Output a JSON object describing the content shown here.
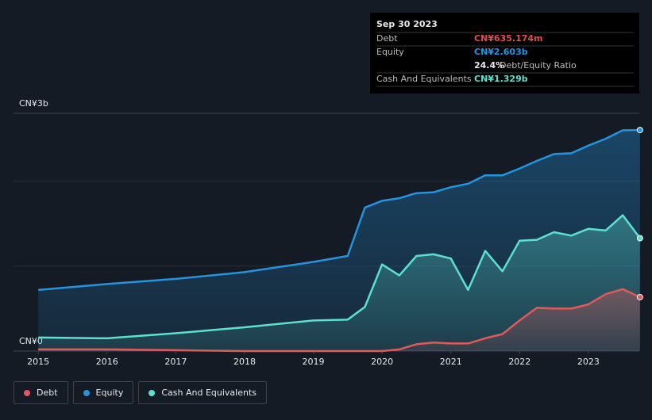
{
  "chart_data": {
    "type": "area",
    "x": [
      2015,
      2016,
      2017,
      2018,
      2019,
      2019.5,
      2019.75,
      2020,
      2020.25,
      2020.5,
      2020.75,
      2021,
      2021.25,
      2021.5,
      2021.75,
      2022,
      2022.25,
      2022.5,
      2022.75,
      2023,
      2023.25,
      2023.5,
      2023.75
    ],
    "xlim": [
      2014.64,
      2023.74
    ],
    "xticks": [
      2015,
      2016,
      2017,
      2018,
      2019,
      2020,
      2021,
      2022,
      2023
    ],
    "ylim": [
      0,
      2.8
    ],
    "yticks": [
      {
        "value": 0,
        "label": "CN¥0"
      },
      {
        "value": 2.8,
        "label": "CN¥3b"
      }
    ],
    "grid_values": [
      1,
      2
    ],
    "series": [
      {
        "name": "Equity",
        "color": "#2394df",
        "values": [
          0.72,
          0.79,
          0.85,
          0.93,
          1.05,
          1.12,
          1.69,
          1.77,
          1.8,
          1.86,
          1.87,
          1.93,
          1.97,
          2.07,
          2.07,
          2.15,
          2.24,
          2.32,
          2.33,
          2.42,
          2.5,
          2.6,
          2.603
        ]
      },
      {
        "name": "Cash And Equivalents",
        "color": "#5ce0d0",
        "values": [
          0.16,
          0.15,
          0.21,
          0.28,
          0.36,
          0.37,
          0.52,
          1.02,
          0.89,
          1.12,
          1.14,
          1.09,
          0.72,
          1.18,
          0.94,
          1.3,
          1.31,
          1.4,
          1.36,
          1.44,
          1.42,
          1.6,
          1.329
        ]
      },
      {
        "name": "Debt",
        "color": "#e05a5a",
        "values": [
          0.02,
          0.02,
          0.01,
          0,
          0,
          0,
          0,
          0,
          0.02,
          0.08,
          0.1,
          0.09,
          0.09,
          0.15,
          0.2,
          0.36,
          0.51,
          0.5,
          0.5,
          0.55,
          0.67,
          0.73,
          0.635
        ]
      }
    ],
    "legend_order": [
      2,
      0,
      1
    ],
    "tooltip": {
      "date": "Sep 30 2023",
      "debt": {
        "label": "Debt",
        "value": "CN¥635.174m"
      },
      "equity": {
        "label": "Equity",
        "value": "CN¥2.603b"
      },
      "ratio": {
        "value": "24.4%",
        "label": "Debt/Equity Ratio"
      },
      "cash": {
        "label": "Cash And Equivalents",
        "value": "CN¥1.329b"
      }
    }
  }
}
